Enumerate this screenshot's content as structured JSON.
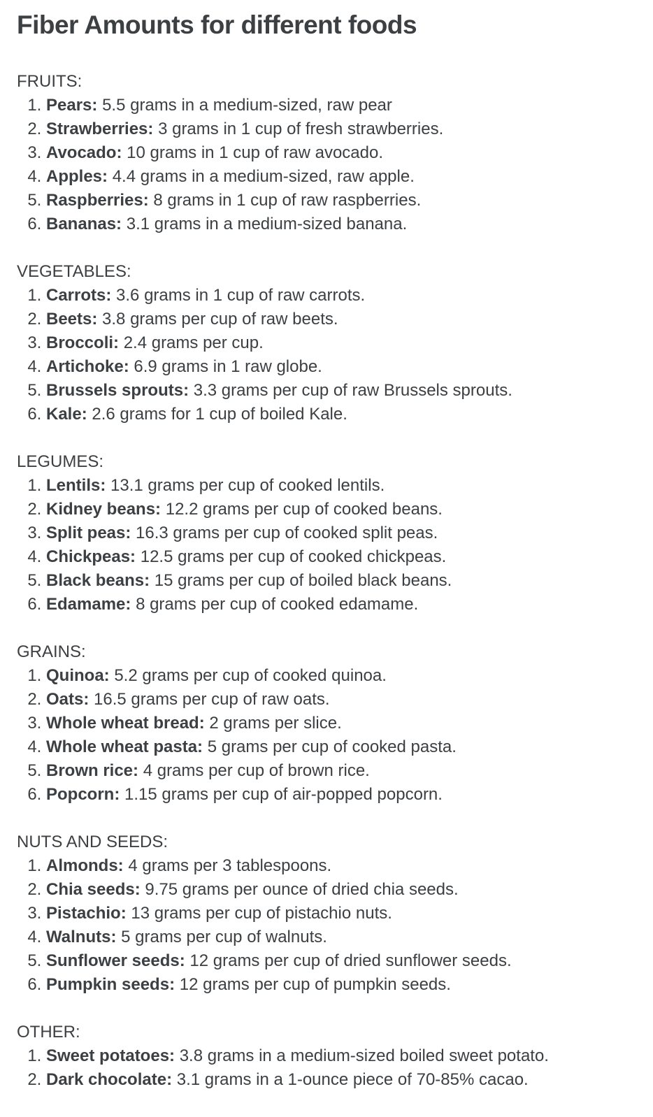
{
  "page": {
    "title": "Fiber Amounts for different foods",
    "background": "#ffffff",
    "text_color": "#3d4043"
  },
  "sections": [
    {
      "heading": "FRUITS:",
      "items": [
        {
          "name": "Pears:",
          "detail": "5.5 grams in a medium-sized, raw pear"
        },
        {
          "name": "Strawberries:",
          "detail": "3 grams in 1 cup of fresh strawberries."
        },
        {
          "name": "Avocado:",
          "detail": "10 grams in 1 cup of raw avocado."
        },
        {
          "name": "Apples:",
          "detail": "4.4 grams in a medium-sized, raw apple."
        },
        {
          "name": "Raspberries:",
          "detail": "8 grams in 1 cup of raw raspberries."
        },
        {
          "name": "Bananas:",
          "detail": "3.1 grams in a medium-sized banana."
        }
      ]
    },
    {
      "heading": "VEGETABLES:",
      "items": [
        {
          "name": "Carrots:",
          "detail": "3.6 grams in 1 cup of raw carrots."
        },
        {
          "name": "Beets:",
          "detail": "3.8 grams per cup of raw beets."
        },
        {
          "name": "Broccoli:",
          "detail": "2.4 grams per cup."
        },
        {
          "name": "Artichoke:",
          "detail": "6.9 grams in 1 raw globe."
        },
        {
          "name": "Brussels sprouts:",
          "detail": "3.3 grams per cup of raw Brussels sprouts."
        },
        {
          "name": "Kale:",
          "detail": "2.6 grams for 1 cup of boiled Kale."
        }
      ]
    },
    {
      "heading": "LEGUMES:",
      "items": [
        {
          "name": "Lentils:",
          "detail": "13.1 grams per cup of cooked lentils."
        },
        {
          "name": "Kidney beans:",
          "detail": "12.2 grams per cup of cooked beans."
        },
        {
          "name": "Split peas:",
          "detail": "16.3 grams per cup of cooked split peas."
        },
        {
          "name": "Chickpeas:",
          "detail": "12.5 grams per cup of cooked chickpeas."
        },
        {
          "name": "Black beans:",
          "detail": "15 grams per cup of boiled black beans."
        },
        {
          "name": "Edamame:",
          "detail": "8 grams per cup of cooked edamame."
        }
      ]
    },
    {
      "heading": "GRAINS:",
      "items": [
        {
          "name": "Quinoa:",
          "detail": "5.2 grams per cup of cooked quinoa."
        },
        {
          "name": "Oats:",
          "detail": "16.5 grams per cup of raw oats."
        },
        {
          "name": "Whole wheat bread:",
          "detail": "2 grams per slice."
        },
        {
          "name": "Whole wheat pasta:",
          "detail": "5 grams per cup of cooked pasta."
        },
        {
          "name": "Brown rice:",
          "detail": "4 grams per cup of brown rice."
        },
        {
          "name": "Popcorn:",
          "detail": "1.15 grams per cup of air-popped popcorn."
        }
      ]
    },
    {
      "heading": "NUTS AND SEEDS:",
      "items": [
        {
          "name": "Almonds:",
          "detail": "4 grams per 3 tablespoons."
        },
        {
          "name": "Chia seeds:",
          "detail": "9.75 grams per ounce of dried chia seeds."
        },
        {
          "name": "Pistachio:",
          "detail": "13 grams per cup of pistachio nuts."
        },
        {
          "name": "Walnuts:",
          "detail": "5 grams per cup of walnuts."
        },
        {
          "name": "Sunflower seeds:",
          "detail": "12 grams per cup of dried sunflower seeds."
        },
        {
          "name": "Pumpkin seeds:",
          "detail": "12 grams per cup of pumpkin seeds."
        }
      ]
    },
    {
      "heading": "OTHER:",
      "items": [
        {
          "name": "Sweet potatoes:",
          "detail": "3.8 grams in a medium-sized boiled sweet potato."
        },
        {
          "name": "Dark chocolate:",
          "detail": "3.1 grams in a 1-ounce piece of 70-85% cacao."
        }
      ]
    }
  ]
}
